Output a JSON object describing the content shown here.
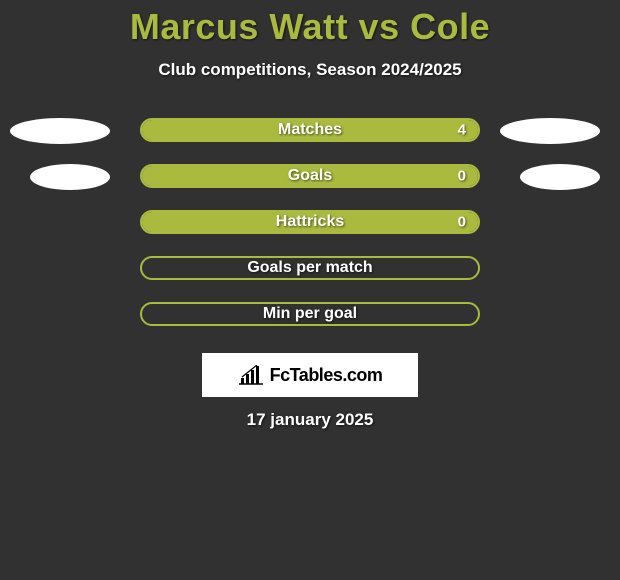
{
  "page": {
    "background_color": "#313131",
    "accent_color": "#aaba3e",
    "text_color": "#ffffff",
    "box_bg": "#ffffff"
  },
  "header": {
    "title": "Marcus Watt vs Cole",
    "title_color": "#aaba3e",
    "title_fontsize": 36,
    "subtitle": "Club competitions, Season 2024/2025",
    "subtitle_fontsize": 17
  },
  "bars": {
    "outer_width": 340,
    "outer_height": 24,
    "border_radius": 12,
    "border_color": "#aaba3e",
    "fill_color": "#aaba3e",
    "label_fontsize": 16,
    "value_fontsize": 15
  },
  "ellipse": {
    "width": 100,
    "height": 26,
    "color": "#ffffff"
  },
  "rows": [
    {
      "label": "Matches",
      "value": "4",
      "fill_pct": 100,
      "show_left_ellipse": true,
      "show_right_ellipse": true
    },
    {
      "label": "Goals",
      "value": "0",
      "fill_pct": 100,
      "show_left_ellipse": true,
      "show_right_ellipse": true
    },
    {
      "label": "Hattricks",
      "value": "0",
      "fill_pct": 100,
      "show_left_ellipse": false,
      "show_right_ellipse": false
    },
    {
      "label": "Goals per match",
      "value": "",
      "fill_pct": 0,
      "show_left_ellipse": false,
      "show_right_ellipse": false
    },
    {
      "label": "Min per goal",
      "value": "",
      "fill_pct": 0,
      "show_left_ellipse": false,
      "show_right_ellipse": false
    }
  ],
  "brand": {
    "text": "FcTables.com",
    "text_color": "#000000",
    "box_bg": "#ffffff",
    "icon_name": "bar-chart-icon"
  },
  "footer": {
    "date": "17 january 2025"
  }
}
